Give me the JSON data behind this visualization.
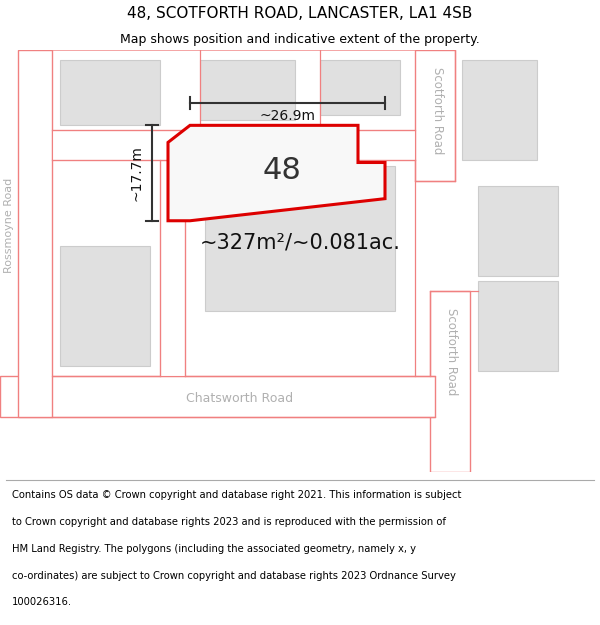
{
  "title": "48, SCOTFORTH ROAD, LANCASTER, LA1 4SB",
  "subtitle": "Map shows position and indicative extent of the property.",
  "area_label": "~327m²/~0.081ac.",
  "number_label": "48",
  "dim_h": "~17.7m",
  "dim_w": "~26.9m",
  "background_color": "#ffffff",
  "road_outline_color": "#f08080",
  "building_fill": "#e0e0e0",
  "building_outline": "#cccccc",
  "property_outline": "#dd0000",
  "footer_lines": [
    "Contains OS data © Crown copyright and database right 2021. This information is subject",
    "to Crown copyright and database rights 2023 and is reproduced with the permission of",
    "HM Land Registry. The polygons (including the associated geometry, namely x, y",
    "co-ordinates) are subject to Crown copyright and database rights 2023 Ordnance Survey",
    "100026316."
  ],
  "title_fontsize": 11,
  "subtitle_fontsize": 9,
  "footer_fontsize": 7.2
}
